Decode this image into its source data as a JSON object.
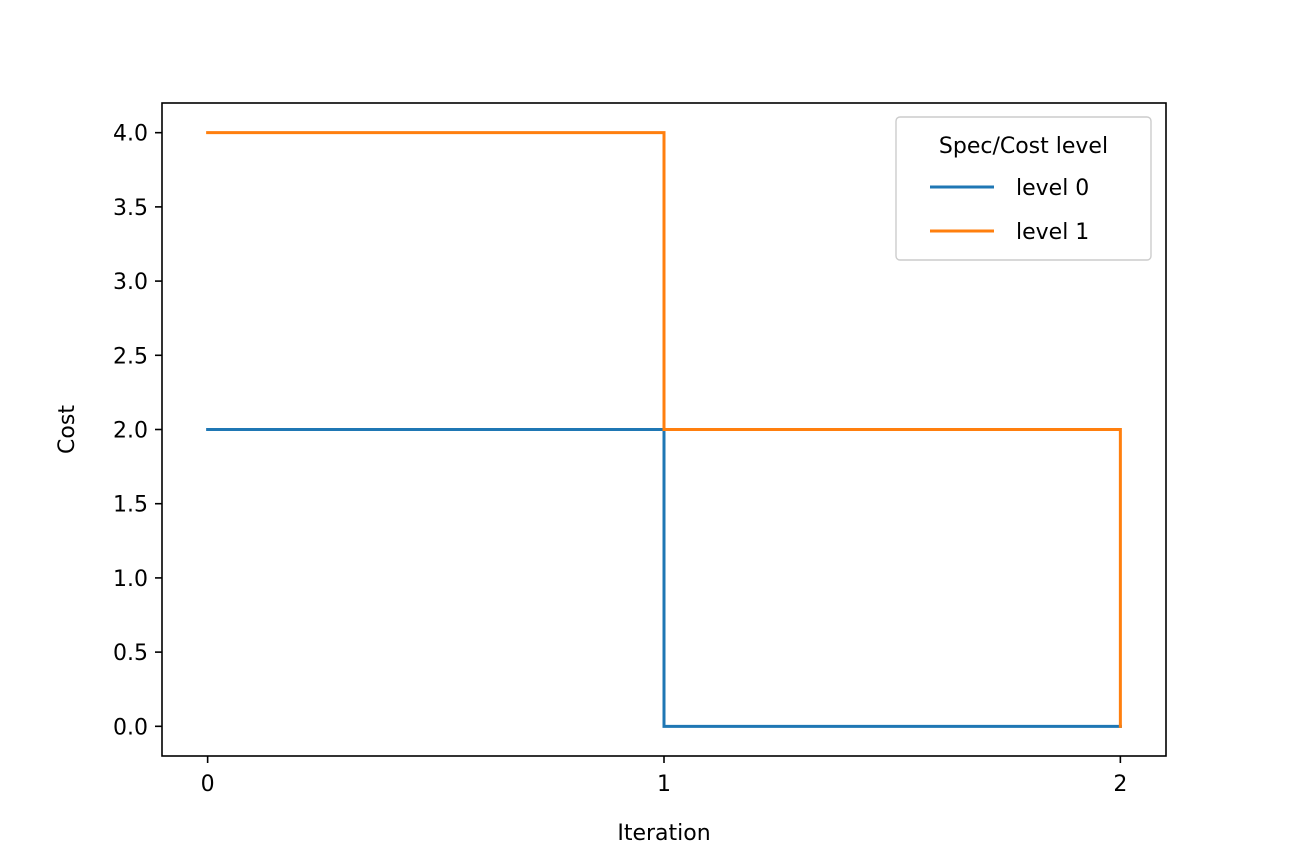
{
  "chart_data": {
    "type": "line",
    "step": "post",
    "xlabel": "Iteration",
    "ylabel": "Cost",
    "xlim": [
      -0.1,
      2.1
    ],
    "ylim": [
      -0.2,
      4.2
    ],
    "x_ticks": [
      0,
      1,
      2
    ],
    "x_tick_labels": [
      "0",
      "1",
      "2"
    ],
    "y_ticks": [
      0.0,
      0.5,
      1.0,
      1.5,
      2.0,
      2.5,
      3.0,
      3.5,
      4.0
    ],
    "y_tick_labels": [
      "0.0",
      "0.5",
      "1.0",
      "1.5",
      "2.0",
      "2.5",
      "3.0",
      "3.5",
      "4.0"
    ],
    "grid": false,
    "legend": {
      "title": "Spec/Cost level",
      "placement": "top-right"
    },
    "series": [
      {
        "name": "level 0",
        "color": "#1f77b4",
        "x": [
          0,
          1,
          2
        ],
        "y": [
          2,
          0,
          0
        ]
      },
      {
        "name": "level 1",
        "color": "#ff7f0e",
        "x": [
          0,
          1,
          2
        ],
        "y": [
          4,
          2,
          0
        ]
      }
    ]
  }
}
